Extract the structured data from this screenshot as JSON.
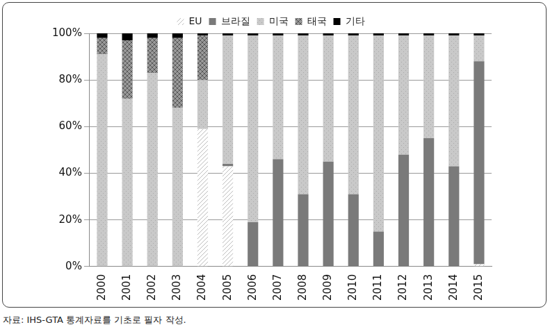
{
  "chart_data": {
    "type": "bar",
    "stacked": true,
    "categories": [
      "2000",
      "2001",
      "2002",
      "2003",
      "2004",
      "2005",
      "2006",
      "2007",
      "2008",
      "2009",
      "2010",
      "2011",
      "2012",
      "2013",
      "2014",
      "2015"
    ],
    "series": [
      {
        "name": "EU",
        "color": "#e6e6e6",
        "values": [
          0,
          0,
          0,
          0,
          59,
          43,
          0,
          0,
          0,
          0,
          0,
          0,
          0,
          0,
          0,
          1
        ]
      },
      {
        "name": "브라질",
        "color": "#7a7a7a",
        "values": [
          0,
          0,
          0,
          0,
          0,
          1,
          19,
          46,
          31,
          45,
          31,
          15,
          48,
          55,
          43,
          87
        ]
      },
      {
        "name": "미국",
        "color": "#c9c9c9",
        "values": [
          91,
          72,
          83,
          68,
          21,
          55,
          80,
          53,
          68,
          54,
          68,
          84,
          51,
          44,
          56,
          11
        ]
      },
      {
        "name": "태국",
        "color": "#9a9a9a",
        "values": [
          7,
          25,
          15,
          30,
          19,
          0,
          0,
          0,
          0,
          0,
          0,
          0,
          0,
          0,
          0,
          0
        ]
      },
      {
        "name": "기타",
        "color": "#000000",
        "values": [
          2,
          3,
          2,
          2,
          1,
          1,
          1,
          1,
          1,
          1,
          1,
          1,
          1,
          1,
          1,
          1
        ]
      }
    ],
    "ylim": [
      0,
      100
    ],
    "yticks": [
      {
        "value": 0,
        "label": "0%"
      },
      {
        "value": 20,
        "label": "20%"
      },
      {
        "value": 40,
        "label": "40%"
      },
      {
        "value": 60,
        "label": "60%"
      },
      {
        "value": 80,
        "label": "80%"
      },
      {
        "value": 100,
        "label": "100%"
      }
    ],
    "grid": true,
    "legend": "top",
    "annotations": [
      "자료: IHS-GTA 통계자료를 기초로 필자 작성."
    ]
  }
}
